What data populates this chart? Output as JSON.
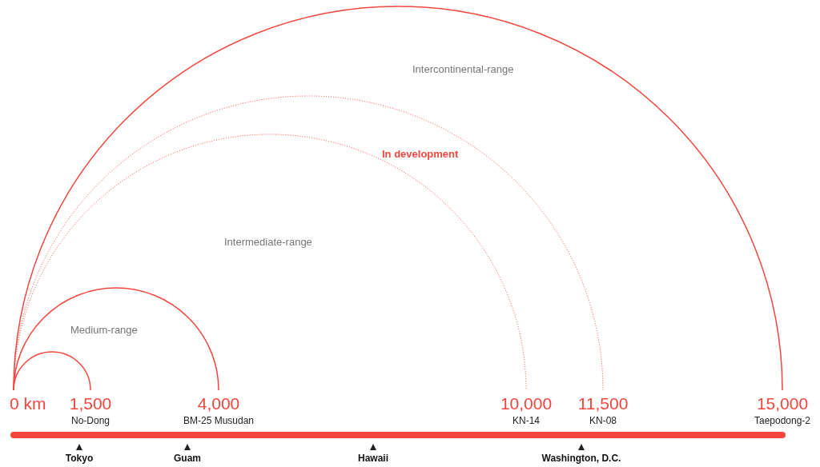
{
  "chart_data": {
    "type": "other",
    "categories": [
      "No-Dong",
      "BM-25 Musudan",
      "KN-14",
      "KN-08",
      "Taepodong-2"
    ],
    "series": [
      {
        "color": "#f2473f",
        "line_style": "solid",
        "values": [
          1500,
          4000,
          null,
          null,
          15000
        ],
        "value_labels": [
          "1,500",
          "4,000",
          null,
          null,
          "15,000"
        ]
      },
      {
        "name": "In development",
        "color": "#f2473f",
        "line_style": "dotted",
        "values": [
          null,
          null,
          10000,
          11500,
          null
        ],
        "value_labels": [
          null,
          null,
          "10,000",
          "11,500",
          null
        ]
      }
    ],
    "annotations": [
      "Medium-range",
      "Intermediate-range",
      "Intercontinental-range",
      "0 km",
      "Tokyo",
      "Guam",
      "Hawaii",
      "Washington, D.C."
    ],
    "legend": false
  }
}
